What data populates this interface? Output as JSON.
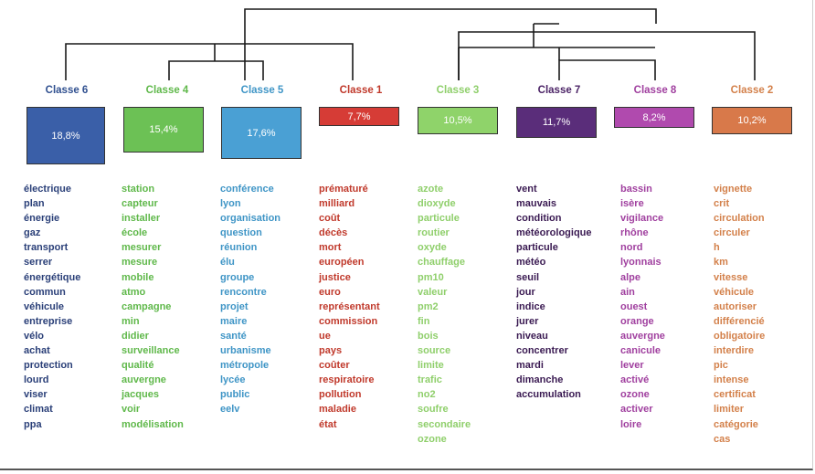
{
  "classes": [
    {
      "id": "c6",
      "title": "Classe 6",
      "percent": "18,8%",
      "color": "#2f4f8f",
      "box": "#3a5fa8",
      "words": [
        "électrique",
        "plan",
        "énergie",
        "gaz",
        "transport",
        "serrer",
        "énergétique",
        "commun",
        "véhicule",
        "entreprise",
        "vélo",
        "achat",
        "protection",
        "lourd",
        "viser",
        "climat",
        "ppa"
      ]
    },
    {
      "id": "c4",
      "title": "Classe 4",
      "percent": "15,4%",
      "color": "#5fb84a",
      "box": "#6cc155",
      "words": [
        "station",
        "capteur",
        "installer",
        "école",
        "mesurer",
        "mesure",
        "mobile",
        "atmo",
        "campagne",
        "min",
        "didier",
        "surveillance",
        "qualité",
        "auvergne",
        "jacques",
        "voir",
        "modélisation"
      ]
    },
    {
      "id": "c5",
      "title": "Classe 5",
      "percent": "17,6%",
      "color": "#3f95c6",
      "box": "#4aa0d4",
      "words": [
        "conférence",
        "lyon",
        "organisation",
        "question",
        "réunion",
        "élu",
        "groupe",
        "rencontre",
        "projet",
        "maire",
        "santé",
        "urbanisme",
        "métropole",
        "lycée",
        "public",
        "eelv"
      ]
    },
    {
      "id": "c1",
      "title": "Classe 1",
      "percent": "7,7%",
      "color": "#c0392b",
      "box": "#d63c36",
      "words": [
        "prématuré",
        "milliard",
        "coût",
        "décès",
        "mort",
        "européen",
        "justice",
        "euro",
        "représentant",
        "commission",
        "ue",
        "pays",
        "coûter",
        "respiratoire",
        "pollution",
        "maladie",
        "état"
      ]
    },
    {
      "id": "c3",
      "title": "Classe 3",
      "percent": "10,5%",
      "color": "#8fcf6b",
      "box": "#8fd36a",
      "words": [
        "azote",
        "dioxyde",
        "particule",
        "routier",
        "oxyde",
        "chauffage",
        "pm10",
        "valeur",
        "pm2",
        "fin",
        "bois",
        "source",
        "limite",
        "trafic",
        "no2",
        "soufre",
        "secondaire",
        "ozone"
      ]
    },
    {
      "id": "c7",
      "title": "Classe 7",
      "percent": "11,7%",
      "color": "#4b2366",
      "box": "#5a2d7a",
      "words": [
        "vent",
        "mauvais",
        "condition",
        "météorologique",
        "particule",
        "météo",
        "seuil",
        "jour",
        "indice",
        "jurer",
        "niveau",
        "concentrer",
        "mardi",
        "dimanche",
        "accumulation"
      ]
    },
    {
      "id": "c8",
      "title": "Classe 8",
      "percent": "8,2%",
      "color": "#a0409f",
      "box": "#b04aae",
      "words": [
        "bassin",
        "isère",
        "vigilance",
        "rhône",
        "nord",
        "lyonnais",
        "alpe",
        "ain",
        "ouest",
        "orange",
        "auvergne",
        "canicule",
        "lever",
        "activé",
        "ozone",
        "activer",
        "loire"
      ]
    },
    {
      "id": "c2",
      "title": "Classe 2",
      "percent": "10,2%",
      "color": "#d3804a",
      "box": "#d8794a",
      "words": [
        "vignette",
        "crit",
        "circulation",
        "circuler",
        "h",
        "km",
        "vitesse",
        "véhicule",
        "autoriser",
        "différencié",
        "obligatoire",
        "interdire",
        "pic",
        "intense",
        "certificat",
        "limiter",
        "catégorie",
        "cas"
      ]
    }
  ]
}
